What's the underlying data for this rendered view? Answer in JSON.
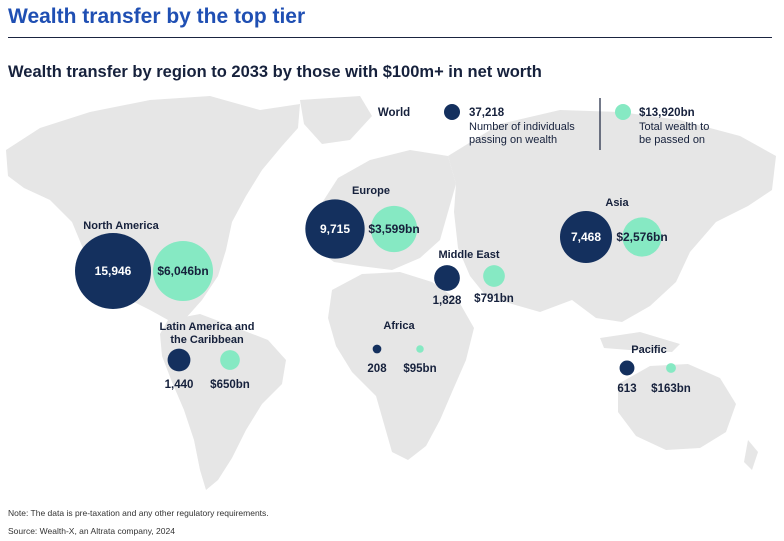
{
  "header": {
    "title": "Wealth transfer by the top tier",
    "subtitle": "Wealth transfer by region to 2033 by those with $100m+ in net worth"
  },
  "footer": {
    "note": "Note: The data is pre-taxation and any other regulatory requirements.",
    "source": "Source: Wealth-X, an Altrata company, 2024"
  },
  "colors": {
    "individuals": "#14305e",
    "wealth": "#86e9c3",
    "map": "#e6e6e6",
    "title": "#1f4fb3",
    "text": "#16213c"
  },
  "chart_data": {
    "type": "bubble-map",
    "title": "Wealth transfer by region to 2033 by those with $100m+ in net worth",
    "world": {
      "label": "World",
      "individuals": 37218,
      "individuals_label": "37,218",
      "individuals_desc_1": "Number of individuals",
      "individuals_desc_2": "passing on wealth",
      "wealth_bn": 13920,
      "wealth_label": "$13,920bn",
      "wealth_desc_1": "Total wealth to",
      "wealth_desc_2": "be passed on"
    },
    "regions": [
      {
        "name": "North America",
        "name_2": "",
        "individuals": 15946,
        "individuals_label": "15,946",
        "wealth_bn": 6046,
        "wealth_label": "$6,046bn"
      },
      {
        "name": "Europe",
        "name_2": "",
        "individuals": 9715,
        "individuals_label": "9,715",
        "wealth_bn": 3599,
        "wealth_label": "$3,599bn"
      },
      {
        "name": "Asia",
        "name_2": "",
        "individuals": 7468,
        "individuals_label": "7,468",
        "wealth_bn": 2576,
        "wealth_label": "$2,576bn"
      },
      {
        "name": "Middle East",
        "name_2": "",
        "individuals": 1828,
        "individuals_label": "1,828",
        "wealth_bn": 791,
        "wealth_label": "$791bn"
      },
      {
        "name": "Latin America and",
        "name_2": "the Caribbean",
        "individuals": 1440,
        "individuals_label": "1,440",
        "wealth_bn": 650,
        "wealth_label": "$650bn"
      },
      {
        "name": "Africa",
        "name_2": "",
        "individuals": 208,
        "individuals_label": "208",
        "wealth_bn": 95,
        "wealth_label": "$95bn"
      },
      {
        "name": "Pacific",
        "name_2": "",
        "individuals": 613,
        "individuals_label": "613",
        "wealth_bn": 163,
        "wealth_label": "$163bn"
      }
    ]
  }
}
